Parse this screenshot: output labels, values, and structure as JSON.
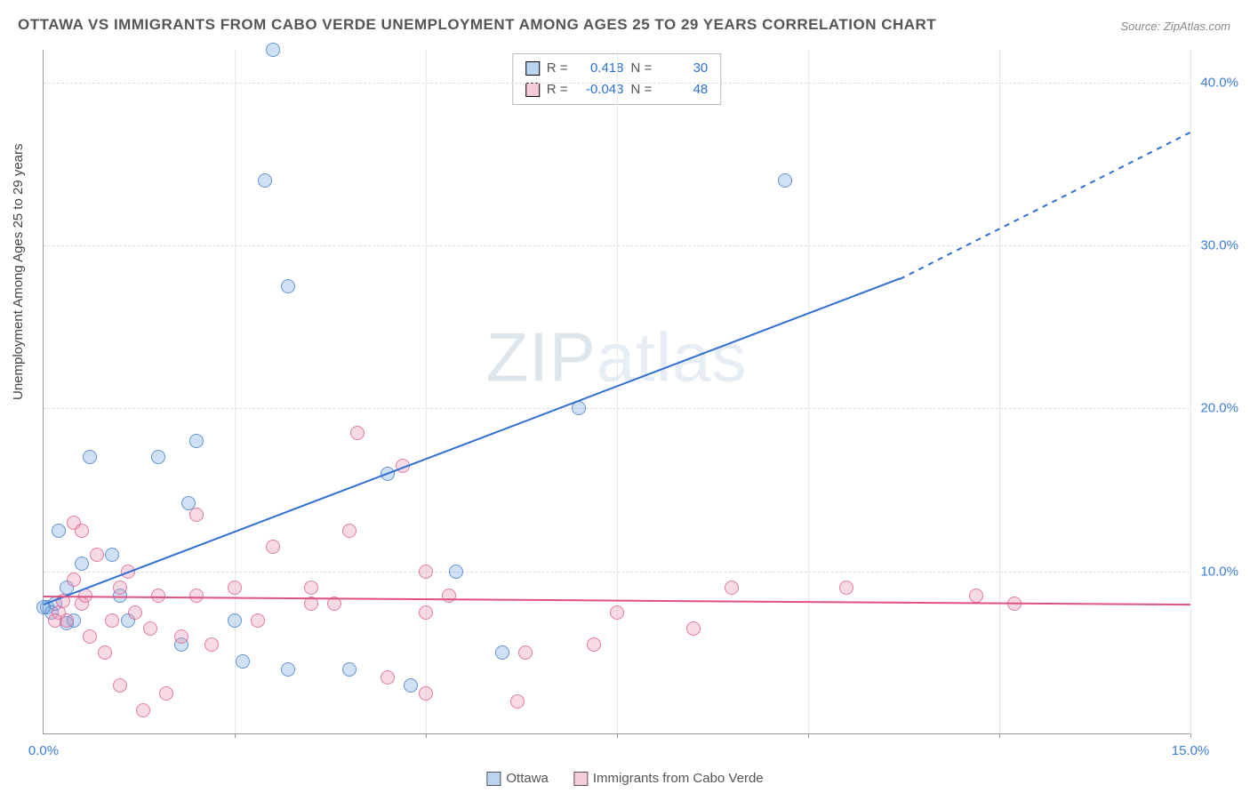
{
  "title": "OTTAWA VS IMMIGRANTS FROM CABO VERDE UNEMPLOYMENT AMONG AGES 25 TO 29 YEARS CORRELATION CHART",
  "source": "Source: ZipAtlas.com",
  "ylabel": "Unemployment Among Ages 25 to 29 years",
  "watermark_a": "ZIP",
  "watermark_b": "atlas",
  "chart": {
    "type": "scatter",
    "xlim": [
      0,
      15
    ],
    "ylim": [
      0,
      42
    ],
    "xticks": [
      0,
      5,
      10,
      15
    ],
    "xticklabels": [
      "0.0%",
      "",
      "",
      "15.0%"
    ],
    "yticks": [
      10,
      20,
      30,
      40
    ],
    "yticklabels": [
      "10.0%",
      "20.0%",
      "30.0%",
      "40.0%"
    ],
    "vgrids": [
      2.5,
      5,
      7.5,
      10,
      12.5,
      15
    ],
    "background_color": "#ffffff",
    "grid_color": "#dddddd",
    "marker_size": 16,
    "series": [
      {
        "name": "Ottawa",
        "color_fill": "rgba(120,170,225,0.35)",
        "color_stroke": "rgba(70,130,200,0.8)",
        "trend_color": "#2e6fd6",
        "R": "0.418",
        "N": "30",
        "trend": {
          "x0": 0,
          "y0": 8.0,
          "x1": 11.2,
          "y1": 28.0,
          "dash_to_x": 15.0,
          "dash_to_y": 37.0
        },
        "points": [
          [
            3.0,
            42.0
          ],
          [
            2.9,
            34.0
          ],
          [
            9.7,
            34.0
          ],
          [
            3.2,
            27.5
          ],
          [
            7.0,
            20.0
          ],
          [
            0.6,
            17.0
          ],
          [
            1.5,
            17.0
          ],
          [
            2.0,
            18.0
          ],
          [
            4.5,
            16.0
          ],
          [
            1.9,
            14.2
          ],
          [
            0.2,
            12.5
          ],
          [
            0.5,
            10.5
          ],
          [
            0.9,
            11.0
          ],
          [
            0.3,
            9.0
          ],
          [
            1.0,
            8.5
          ],
          [
            1.1,
            7.0
          ],
          [
            2.5,
            7.0
          ],
          [
            1.8,
            5.5
          ],
          [
            2.6,
            4.5
          ],
          [
            3.2,
            4.0
          ],
          [
            0.05,
            7.8
          ],
          [
            0.1,
            7.5
          ],
          [
            0.15,
            8.0
          ],
          [
            0.3,
            6.8
          ],
          [
            0.4,
            7.0
          ],
          [
            4.0,
            4.0
          ],
          [
            4.8,
            3.0
          ],
          [
            5.4,
            10.0
          ],
          [
            6.0,
            5.0
          ],
          [
            0.0,
            7.8
          ]
        ]
      },
      {
        "name": "Immigrants from Cabo Verde",
        "color_fill": "rgba(235,150,180,0.35)",
        "color_stroke": "rgba(220,100,150,0.8)",
        "trend_color": "#e0527f",
        "R": "-0.043",
        "N": "48",
        "trend": {
          "x0": 0,
          "y0": 8.5,
          "x1": 15.0,
          "y1": 8.0
        },
        "points": [
          [
            4.1,
            18.5
          ],
          [
            4.7,
            16.5
          ],
          [
            4.0,
            12.5
          ],
          [
            5.0,
            10.0
          ],
          [
            3.5,
            9.0
          ],
          [
            2.5,
            9.0
          ],
          [
            2.0,
            8.5
          ],
          [
            1.5,
            8.5
          ],
          [
            1.0,
            9.0
          ],
          [
            0.5,
            8.0
          ],
          [
            0.2,
            7.5
          ],
          [
            0.3,
            7.0
          ],
          [
            0.4,
            13.0
          ],
          [
            0.5,
            12.5
          ],
          [
            0.7,
            11.0
          ],
          [
            1.2,
            7.5
          ],
          [
            1.4,
            6.5
          ],
          [
            1.8,
            6.0
          ],
          [
            2.2,
            5.5
          ],
          [
            0.8,
            5.0
          ],
          [
            1.0,
            3.0
          ],
          [
            1.3,
            1.5
          ],
          [
            1.6,
            2.5
          ],
          [
            5.0,
            7.5
          ],
          [
            5.3,
            8.5
          ],
          [
            4.5,
            3.5
          ],
          [
            5.0,
            2.5
          ],
          [
            6.2,
            2.0
          ],
          [
            6.3,
            5.0
          ],
          [
            7.2,
            5.5
          ],
          [
            7.5,
            7.5
          ],
          [
            8.5,
            6.5
          ],
          [
            9.0,
            9.0
          ],
          [
            10.5,
            9.0
          ],
          [
            12.2,
            8.5
          ],
          [
            12.7,
            8.0
          ],
          [
            0.6,
            6.0
          ],
          [
            0.9,
            7.0
          ],
          [
            2.0,
            13.5
          ],
          [
            3.0,
            11.5
          ],
          [
            3.5,
            8.0
          ],
          [
            2.8,
            7.0
          ],
          [
            3.8,
            8.0
          ],
          [
            1.1,
            10.0
          ],
          [
            0.4,
            9.5
          ],
          [
            0.15,
            7.0
          ],
          [
            0.25,
            8.2
          ],
          [
            0.55,
            8.5
          ]
        ]
      }
    ]
  },
  "legend": {
    "stats_label_R": "R =",
    "stats_label_N": "N =",
    "bottom": [
      "Ottawa",
      "Immigrants from Cabo Verde"
    ]
  }
}
